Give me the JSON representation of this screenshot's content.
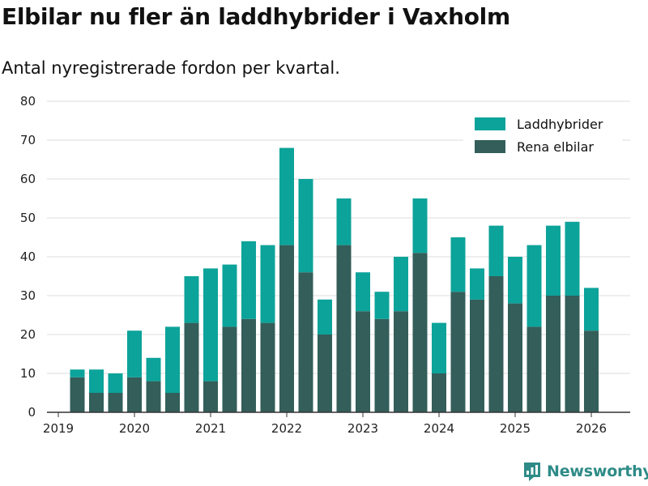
{
  "title": "Elbilar nu fler än laddhybrider i Vaxholm",
  "subtitle": "Antal nyregistrerade fordon per kvartal.",
  "brand": "Newsworthy",
  "colors": {
    "laddhybrider": "#0ca39a",
    "elbilar": "#335e5a",
    "grid": "#dddddd",
    "axis": "#333333",
    "brand": "#2e8b87"
  },
  "chart_data": {
    "type": "bar",
    "stacked": true,
    "title": "Elbilar nu fler än laddhybrider i Vaxholm",
    "subtitle": "Antal nyregistrerade fordon per kvartal.",
    "xlabel": "",
    "ylabel": "",
    "ylim": [
      0,
      80
    ],
    "yticks": [
      0,
      10,
      20,
      30,
      40,
      50,
      60,
      70,
      80
    ],
    "xticks": [
      "2019",
      "2020",
      "2021",
      "2022",
      "2023",
      "2024",
      "2025",
      "2026"
    ],
    "xlim": [
      2019.0,
      2026.5
    ],
    "legend_position": "top-right",
    "grid": true,
    "x": [
      2019.25,
      2019.5,
      2019.75,
      2020.0,
      2020.25,
      2020.5,
      2020.75,
      2021.0,
      2021.25,
      2021.5,
      2021.75,
      2022.0,
      2022.25,
      2022.5,
      2022.75,
      2023.0,
      2023.25,
      2023.5,
      2023.75,
      2024.0,
      2024.25,
      2024.5,
      2024.75,
      2025.0,
      2025.25,
      2025.5,
      2025.75,
      2026.0
    ],
    "series": [
      {
        "name": "Rena elbilar",
        "values": [
          9,
          5,
          5,
          9,
          8,
          5,
          23,
          8,
          22,
          24,
          23,
          43,
          36,
          20,
          43,
          26,
          24,
          26,
          41,
          10,
          31,
          29,
          35,
          28,
          22,
          30,
          30,
          21
        ]
      },
      {
        "name": "Laddhybrider",
        "values": [
          2,
          6,
          5,
          12,
          6,
          17,
          12,
          29,
          16,
          20,
          20,
          25,
          24,
          9,
          12,
          10,
          7,
          14,
          14,
          13,
          14,
          8,
          13,
          12,
          21,
          18,
          19,
          11
        ]
      }
    ],
    "legend": [
      "Laddhybrider",
      "Rena elbilar"
    ]
  }
}
